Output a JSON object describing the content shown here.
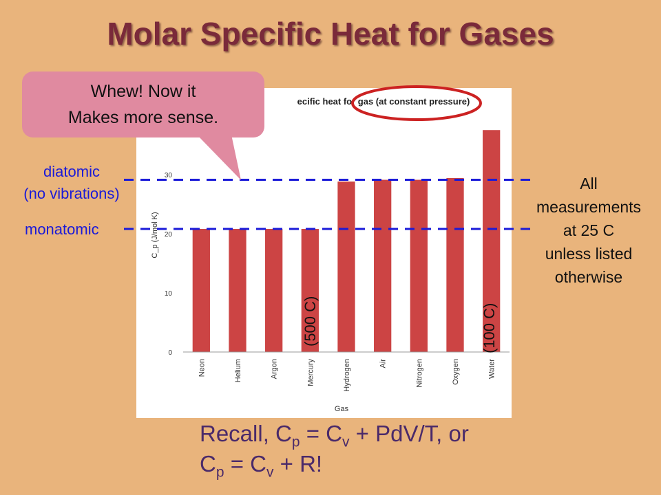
{
  "slide": {
    "title": "Molar Specific Heat for Gases",
    "callout_line1": "Whew! Now it",
    "callout_line2": "Makes more sense.",
    "diatomic_line1": "diatomic",
    "diatomic_line2": "(no vibrations)",
    "monatomic": "monatomic",
    "note_lines": [
      "All",
      "measurements",
      "at 25 C",
      "unless listed",
      "otherwise"
    ],
    "mercury_note": "(500 C)",
    "water_note": "(100 C)",
    "recall": {
      "line1_prefix": "Recall, C",
      "sub_p": "p",
      "eq": " = C",
      "sub_v": "v",
      "line1_suffix": " + PdV/T, or",
      "line2_prefix": "C",
      "line2_suffix": " + R!"
    },
    "colors": {
      "background": "#e9b47c",
      "title": "#7a2a3a",
      "bar": "#cc4444",
      "reference_line": "#1a1ad8",
      "highlight_ellipse": "#cc2222",
      "callout": "#e08aa0"
    }
  },
  "chart_data": {
    "type": "bar",
    "title": "Specific heat for gas (at constant pressure)",
    "title_visible": "ecific heat for gas (at constant pressure)",
    "xlabel": "Gas",
    "ylabel": "C_p (J/mol K)",
    "categories": [
      "Neon",
      "Helium",
      "Argon",
      "Mercury",
      "Hydrogen",
      "Air",
      "Nitrogen",
      "Oxygen",
      "Water"
    ],
    "values": [
      20.8,
      20.8,
      20.8,
      20.8,
      28.8,
      29.1,
      29.1,
      29.4,
      37.5
    ],
    "yticks": [
      0,
      10,
      20,
      30
    ],
    "ylim": [
      0,
      39.5
    ],
    "grid": false,
    "reference_lines": [
      {
        "label": "diatomic (no vibrations)",
        "value": 29.1
      },
      {
        "label": "monatomic",
        "value": 20.8
      }
    ]
  }
}
